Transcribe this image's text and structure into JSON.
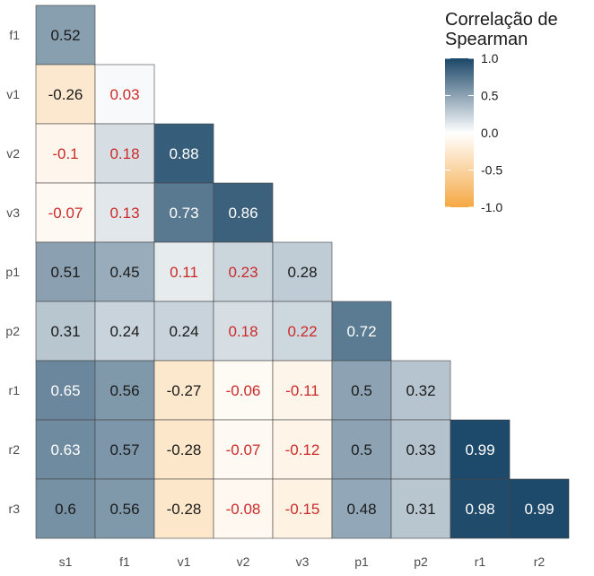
{
  "chart_data": {
    "type": "heatmap",
    "variables": [
      "s1",
      "f1",
      "v1",
      "v2",
      "v3",
      "p1",
      "p2",
      "r1",
      "r2",
      "r3"
    ],
    "x_labels": [
      "s1",
      "f1",
      "v1",
      "v2",
      "v3",
      "p1",
      "p2",
      "r1",
      "r2"
    ],
    "y_labels": [
      "f1",
      "v1",
      "v2",
      "v3",
      "p1",
      "p2",
      "r1",
      "r2",
      "r3"
    ],
    "cells": [
      {
        "x": "s1",
        "y": "f1",
        "value": 0.52,
        "label": "0.52",
        "significant": true
      },
      {
        "x": "s1",
        "y": "v1",
        "value": -0.26,
        "label": "-0.26",
        "significant": true
      },
      {
        "x": "f1",
        "y": "v1",
        "value": 0.03,
        "label": "0.03",
        "significant": false
      },
      {
        "x": "s1",
        "y": "v2",
        "value": -0.1,
        "label": "-0.1",
        "significant": false
      },
      {
        "x": "f1",
        "y": "v2",
        "value": 0.18,
        "label": "0.18",
        "significant": false
      },
      {
        "x": "v1",
        "y": "v2",
        "value": 0.88,
        "label": "0.88",
        "significant": true
      },
      {
        "x": "s1",
        "y": "v3",
        "value": -0.07,
        "label": "-0.07",
        "significant": false
      },
      {
        "x": "f1",
        "y": "v3",
        "value": 0.13,
        "label": "0.13",
        "significant": false
      },
      {
        "x": "v1",
        "y": "v3",
        "value": 0.73,
        "label": "0.73",
        "significant": true
      },
      {
        "x": "v2",
        "y": "v3",
        "value": 0.86,
        "label": "0.86",
        "significant": true
      },
      {
        "x": "s1",
        "y": "p1",
        "value": 0.51,
        "label": "0.51",
        "significant": true
      },
      {
        "x": "f1",
        "y": "p1",
        "value": 0.45,
        "label": "0.45",
        "significant": true
      },
      {
        "x": "v1",
        "y": "p1",
        "value": 0.11,
        "label": "0.11",
        "significant": false
      },
      {
        "x": "v2",
        "y": "p1",
        "value": 0.23,
        "label": "0.23",
        "significant": false
      },
      {
        "x": "v3",
        "y": "p1",
        "value": 0.28,
        "label": "0.28",
        "significant": true
      },
      {
        "x": "s1",
        "y": "p2",
        "value": 0.31,
        "label": "0.31",
        "significant": true
      },
      {
        "x": "f1",
        "y": "p2",
        "value": 0.24,
        "label": "0.24",
        "significant": true
      },
      {
        "x": "v1",
        "y": "p2",
        "value": 0.24,
        "label": "0.24",
        "significant": true
      },
      {
        "x": "v2",
        "y": "p2",
        "value": 0.18,
        "label": "0.18",
        "significant": false
      },
      {
        "x": "v3",
        "y": "p2",
        "value": 0.22,
        "label": "0.22",
        "significant": false
      },
      {
        "x": "p1",
        "y": "p2",
        "value": 0.72,
        "label": "0.72",
        "significant": true
      },
      {
        "x": "s1",
        "y": "r1",
        "value": 0.65,
        "label": "0.65",
        "significant": true
      },
      {
        "x": "f1",
        "y": "r1",
        "value": 0.56,
        "label": "0.56",
        "significant": true
      },
      {
        "x": "v1",
        "y": "r1",
        "value": -0.27,
        "label": "-0.27",
        "significant": true
      },
      {
        "x": "v2",
        "y": "r1",
        "value": -0.06,
        "label": "-0.06",
        "significant": false
      },
      {
        "x": "v3",
        "y": "r1",
        "value": -0.11,
        "label": "-0.11",
        "significant": false
      },
      {
        "x": "p1",
        "y": "r1",
        "value": 0.5,
        "label": "0.5",
        "significant": true
      },
      {
        "x": "p2",
        "y": "r1",
        "value": 0.32,
        "label": "0.32",
        "significant": true
      },
      {
        "x": "s1",
        "y": "r2",
        "value": 0.63,
        "label": "0.63",
        "significant": true
      },
      {
        "x": "f1",
        "y": "r2",
        "value": 0.57,
        "label": "0.57",
        "significant": true
      },
      {
        "x": "v1",
        "y": "r2",
        "value": -0.28,
        "label": "-0.28",
        "significant": true
      },
      {
        "x": "v2",
        "y": "r2",
        "value": -0.07,
        "label": "-0.07",
        "significant": false
      },
      {
        "x": "v3",
        "y": "r2",
        "value": -0.12,
        "label": "-0.12",
        "significant": false
      },
      {
        "x": "p1",
        "y": "r2",
        "value": 0.5,
        "label": "0.5",
        "significant": true
      },
      {
        "x": "p2",
        "y": "r2",
        "value": 0.33,
        "label": "0.33",
        "significant": true
      },
      {
        "x": "r1",
        "y": "r2",
        "value": 0.99,
        "label": "0.99",
        "significant": true
      },
      {
        "x": "s1",
        "y": "r3",
        "value": 0.6,
        "label": "0.6",
        "significant": true
      },
      {
        "x": "f1",
        "y": "r3",
        "value": 0.56,
        "label": "0.56",
        "significant": true
      },
      {
        "x": "v1",
        "y": "r3",
        "value": -0.28,
        "label": "-0.28",
        "significant": true
      },
      {
        "x": "v2",
        "y": "r3",
        "value": -0.08,
        "label": "-0.08",
        "significant": false
      },
      {
        "x": "v3",
        "y": "r3",
        "value": -0.15,
        "label": "-0.15",
        "significant": false
      },
      {
        "x": "p1",
        "y": "r3",
        "value": 0.48,
        "label": "0.48",
        "significant": true
      },
      {
        "x": "p2",
        "y": "r3",
        "value": 0.31,
        "label": "0.31",
        "significant": true
      },
      {
        "x": "r1",
        "y": "r3",
        "value": 0.98,
        "label": "0.98",
        "significant": true
      },
      {
        "x": "r2",
        "y": "r3",
        "value": 0.99,
        "label": "0.99",
        "significant": true
      }
    ],
    "legend": {
      "title": "Correlação de Spearman",
      "title_lines": [
        "Correlação de",
        "Spearman"
      ],
      "ticks": [
        {
          "value": 1.0,
          "label": "1.0"
        },
        {
          "value": 0.5,
          "label": "0.5"
        },
        {
          "value": 0.0,
          "label": "0.0"
        },
        {
          "value": -0.5,
          "label": "-0.5"
        },
        {
          "value": -1.0,
          "label": "-1.0"
        }
      ],
      "range": [
        -1,
        1
      ],
      "placement": "top-right"
    },
    "colors": {
      "high": "#1b4768",
      "mid": "#ffffff",
      "low": "#f5a843",
      "label_significant_dark_bg": "#ffffff",
      "label_significant_light_bg": "#1a1a1a",
      "label_not_significant": "#cc2a2a",
      "cell_border": "#444444"
    },
    "grid": false
  }
}
